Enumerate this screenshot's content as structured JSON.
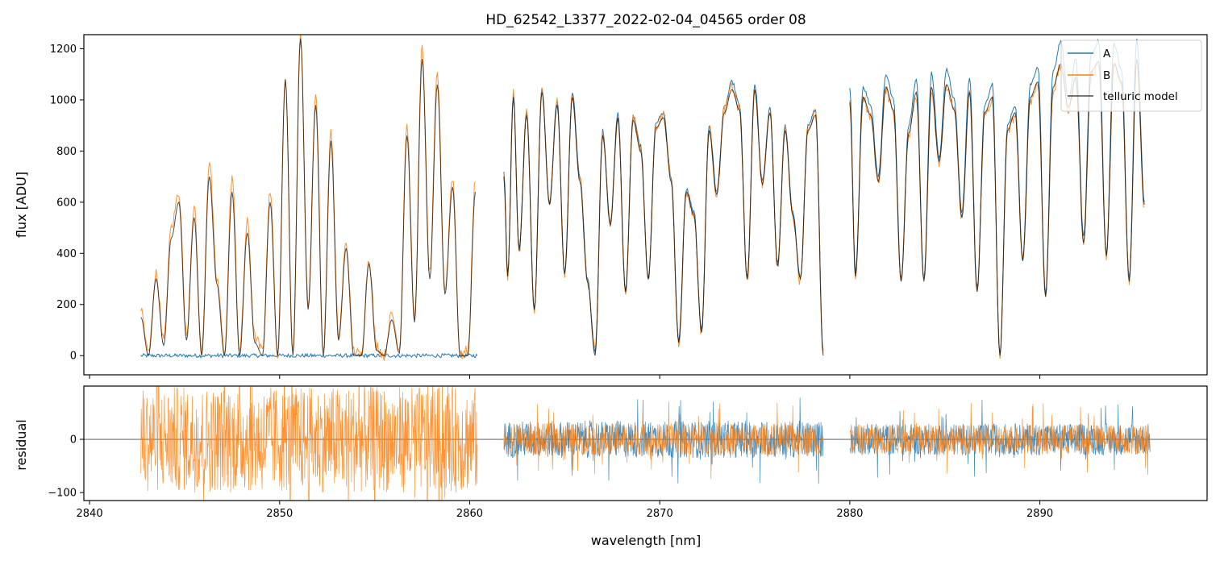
{
  "chart_data": [
    {
      "panel": "main",
      "type": "line",
      "title": "HD_62542_L3377_2022-02-04_04565  order 08",
      "xlabel": "",
      "ylabel": "flux [ADU]",
      "xlim": [
        2839.7,
        2898.8
      ],
      "ylim": [
        -75,
        1255
      ],
      "yticks": [
        0,
        200,
        400,
        600,
        800,
        1000,
        1200
      ],
      "xticks": [
        2840,
        2850,
        2860,
        2870,
        2880,
        2890
      ],
      "legend": "top-right",
      "series": [
        {
          "name": "A",
          "color": "#1f77b4",
          "segments": [
            {
              "x": [
                2842.7,
                2860.4
              ],
              "y": [
                0,
                0
              ]
            },
            {
              "x": [
                2861.8,
                2862.0,
                2862.3,
                2862.6,
                2863.0,
                2863.4,
                2863.8,
                2864.2,
                2864.6,
                2865.0,
                2865.4,
                2865.8,
                2866.2,
                2866.6,
                2867.0,
                2867.4,
                2867.8,
                2868.2,
                2868.6,
                2869.0,
                2869.4,
                2869.8,
                2870.2,
                2870.6,
                2871.0,
                2871.4,
                2871.8,
                2872.2,
                2872.6,
                2873.0,
                2873.4,
                2873.8,
                2874.2,
                2874.6,
                2875.0,
                2875.4,
                2875.8,
                2876.2,
                2876.6,
                2877.0,
                2877.4,
                2877.8,
                2878.2,
                2878.6
              ],
              "y": [
                720,
                320,
                1030,
                420,
                960,
                180,
                1050,
                600,
                1000,
                320,
                1030,
                700,
                300,
                20,
                880,
                520,
                950,
                250,
                940,
                820,
                300,
                910,
                950,
                700,
                60,
                650,
                560,
                100,
                900,
                640,
                970,
                1070,
                980,
                300,
                1060,
                680,
                970,
                360,
                900,
                560,
                300,
                900,
                960,
                20
              ]
            },
            {
              "x": [
                2880.0,
                2880.3,
                2880.7,
                2881.1,
                2881.5,
                2881.9,
                2882.3,
                2882.7,
                2883.1,
                2883.5,
                2883.9,
                2884.3,
                2884.7,
                2885.1,
                2885.5,
                2885.9,
                2886.3,
                2886.7,
                2887.1,
                2887.5,
                2887.9,
                2888.3,
                2888.7,
                2889.1,
                2889.5,
                2889.9,
                2890.3,
                2890.7,
                2891.1,
                2891.5,
                2891.9,
                2892.3,
                2892.7,
                2893.1,
                2893.5,
                2893.9,
                2894.3,
                2894.7,
                2895.1,
                2895.5
              ],
              "y": [
                1040,
                320,
                1050,
                980,
                700,
                1100,
                1000,
                300,
                900,
                1080,
                300,
                1110,
                780,
                1120,
                1000,
                560,
                1090,
                260,
                980,
                1060,
                0,
                900,
                980,
                380,
                1060,
                1130,
                240,
                1110,
                1230,
                1000,
                1160,
                460,
                1180,
                1230,
                400,
                1220,
                1120,
                300,
                1240,
                600
              ]
            }
          ]
        },
        {
          "name": "B",
          "color": "#ff7f0e",
          "segments": [
            {
              "x": [
                2842.7,
                2843.1,
                2843.5,
                2843.9,
                2844.3,
                2844.7,
                2845.1,
                2845.5,
                2845.9,
                2846.3,
                2846.7,
                2847.1,
                2847.5,
                2847.9,
                2848.3,
                2848.7,
                2849.1,
                2849.5,
                2849.9,
                2850.3,
                2850.7,
                2851.1,
                2851.5,
                2851.9,
                2852.3,
                2852.7,
                2853.1,
                2853.5,
                2853.9,
                2854.3,
                2854.7,
                2855.1,
                2855.5,
                2855.9,
                2856.3,
                2856.7,
                2857.1,
                2857.5,
                2857.9,
                2858.3,
                2858.7,
                2859.1,
                2859.5,
                2859.9,
                2860.3
              ],
              "y": [
                180,
                10,
                320,
                60,
                500,
                640,
                80,
                580,
                10,
                760,
                300,
                20,
                700,
                20,
                520,
                70,
                20,
                650,
                0,
                1100,
                0,
                1250,
                200,
                1020,
                20,
                880,
                80,
                440,
                20,
                0,
                380,
                40,
                0,
                160,
                30,
                900,
                150,
                1200,
                320,
                1100,
                260,
                700,
                0,
                20,
                680
              ]
            },
            {
              "x": [
                2861.8,
                2862.0,
                2862.3,
                2862.6,
                2863.0,
                2863.4,
                2863.8,
                2864.2,
                2864.6,
                2865.0,
                2865.4,
                2865.8,
                2866.2,
                2866.6,
                2867.0,
                2867.4,
                2867.8,
                2868.2,
                2868.6,
                2869.0,
                2869.4,
                2869.8,
                2870.2,
                2870.6,
                2871.0,
                2871.4,
                2871.8,
                2872.2,
                2872.6,
                2873.0,
                2873.4,
                2873.8,
                2874.2,
                2874.6,
                2875.0,
                2875.4,
                2875.8,
                2876.2,
                2876.6,
                2877.0,
                2877.4,
                2877.8,
                2878.2,
                2878.6
              ],
              "y": [
                700,
                310,
                1020,
                410,
                950,
                170,
                1040,
                590,
                990,
                310,
                1020,
                690,
                290,
                10,
                870,
                510,
                940,
                240,
                930,
                810,
                290,
                900,
                940,
                690,
                50,
                640,
                550,
                90,
                890,
                630,
                960,
                1050,
                960,
                290,
                1040,
                670,
                960,
                350,
                890,
                550,
                290,
                890,
                950,
                10
              ]
            },
            {
              "x": [
                2880.0,
                2880.3,
                2880.7,
                2881.1,
                2881.5,
                2881.9,
                2882.3,
                2882.7,
                2883.1,
                2883.5,
                2883.9,
                2884.3,
                2884.7,
                2885.1,
                2885.5,
                2885.9,
                2886.3,
                2886.7,
                2887.1,
                2887.5,
                2887.9,
                2888.3,
                2888.7,
                2889.1,
                2889.5,
                2889.9,
                2890.3,
                2890.7,
                2891.1,
                2891.5,
                2891.9,
                2892.3,
                2892.7,
                2893.1,
                2893.5,
                2893.9,
                2894.3,
                2894.7,
                2895.1,
                2895.5
              ],
              "y": [
                980,
                310,
                1000,
                930,
                680,
                1040,
                950,
                290,
                870,
                1020,
                290,
                1040,
                760,
                1050,
                950,
                540,
                1020,
                250,
                940,
                1000,
                0,
                870,
                940,
                370,
                1000,
                1060,
                230,
                1040,
                1130,
                960,
                1080,
                440,
                1100,
                1140,
                390,
                1130,
                1060,
                290,
                1150,
                580
              ]
            }
          ]
        },
        {
          "name": "telluric model",
          "color": "#000000",
          "segments": [
            {
              "x": [
                2842.7,
                2843.1,
                2843.5,
                2843.9,
                2844.3,
                2844.7,
                2845.1,
                2845.5,
                2845.9,
                2846.3,
                2846.7,
                2847.1,
                2847.5,
                2847.9,
                2848.3,
                2848.7,
                2849.1,
                2849.5,
                2849.9,
                2850.3,
                2850.7,
                2851.1,
                2851.5,
                2851.9,
                2852.3,
                2852.7,
                2853.1,
                2853.5,
                2853.9,
                2854.3,
                2854.7,
                2855.1,
                2855.5,
                2855.9,
                2856.3,
                2856.7,
                2857.1,
                2857.5,
                2857.9,
                2858.3,
                2858.7,
                2859.1,
                2859.5,
                2859.9,
                2860.3
              ],
              "y": [
                150,
                0,
                300,
                40,
                460,
                600,
                60,
                540,
                0,
                700,
                280,
                0,
                640,
                0,
                480,
                50,
                0,
                600,
                0,
                1080,
                0,
                1240,
                180,
                980,
                0,
                840,
                60,
                420,
                0,
                0,
                360,
                20,
                0,
                140,
                10,
                860,
                130,
                1160,
                300,
                1060,
                240,
                660,
                0,
                0,
                640
              ]
            },
            {
              "x": [
                2861.8,
                2862.0,
                2862.3,
                2862.6,
                2863.0,
                2863.4,
                2863.8,
                2864.2,
                2864.6,
                2865.0,
                2865.4,
                2865.8,
                2866.2,
                2866.6,
                2867.0,
                2867.4,
                2867.8,
                2868.2,
                2868.6,
                2869.0,
                2869.4,
                2869.8,
                2870.2,
                2870.6,
                2871.0,
                2871.4,
                2871.8,
                2872.2,
                2872.6,
                2873.0,
                2873.4,
                2873.8,
                2874.2,
                2874.6,
                2875.0,
                2875.4,
                2875.8,
                2876.2,
                2876.6,
                2877.0,
                2877.4,
                2877.8,
                2878.2,
                2878.6
              ],
              "y": [
                700,
                310,
                1010,
                410,
                940,
                180,
                1030,
                590,
                980,
                320,
                1010,
                680,
                290,
                0,
                860,
                510,
                930,
                250,
                920,
                800,
                300,
                890,
                930,
                680,
                50,
                640,
                550,
                90,
                880,
                630,
                950,
                1040,
                960,
                300,
                1040,
                670,
                950,
                350,
                880,
                550,
                300,
                880,
                940,
                0
              ]
            },
            {
              "x": [
                2880.0,
                2880.3,
                2880.7,
                2881.1,
                2881.5,
                2881.9,
                2882.3,
                2882.7,
                2883.1,
                2883.5,
                2883.9,
                2884.3,
                2884.7,
                2885.1,
                2885.5,
                2885.9,
                2886.3,
                2886.7,
                2887.1,
                2887.5,
                2887.9,
                2888.3,
                2888.7,
                2889.1,
                2889.5,
                2889.9,
                2890.3,
                2890.7,
                2891.1,
                2891.5,
                2891.9,
                2892.3,
                2892.7,
                2893.1,
                2893.5,
                2893.9,
                2894.3,
                2894.7,
                2895.1,
                2895.5
              ],
              "y": [
                990,
                310,
                1010,
                940,
                680,
                1050,
                960,
                290,
                870,
                1030,
                290,
                1050,
                760,
                1060,
                960,
                540,
                1030,
                250,
                950,
                1010,
                0,
                880,
                950,
                370,
                1010,
                1070,
                230,
                1050,
                1140,
                970,
                1090,
                440,
                1110,
                1150,
                390,
                1140,
                1070,
                290,
                1160,
                590
              ]
            }
          ]
        }
      ]
    },
    {
      "panel": "residual",
      "type": "line",
      "title": "",
      "xlabel": "wavelength [nm]",
      "ylabel": "residual",
      "xlim": [
        2839.7,
        2898.8
      ],
      "ylim": [
        -115,
        100
      ],
      "yticks": [
        -100,
        0
      ],
      "xticks": [
        2840,
        2850,
        2860,
        2870,
        2880,
        2890
      ],
      "zero_line": true,
      "series": [
        {
          "name": "A",
          "color": "#1f77b4",
          "segments": [
            {
              "x": [
                2861.8,
                2878.6
              ],
              "amplitude": 35
            },
            {
              "x": [
                2880.0,
                2895.8
              ],
              "amplitude": 30
            }
          ]
        },
        {
          "name": "B",
          "color": "#ff7f0e",
          "segments": [
            {
              "x": [
                2842.7,
                2860.4
              ],
              "amplitude": 100
            },
            {
              "x": [
                2861.8,
                2878.6
              ],
              "amplitude": 30
            },
            {
              "x": [
                2880.0,
                2895.8
              ],
              "amplitude": 28
            }
          ]
        }
      ]
    }
  ]
}
